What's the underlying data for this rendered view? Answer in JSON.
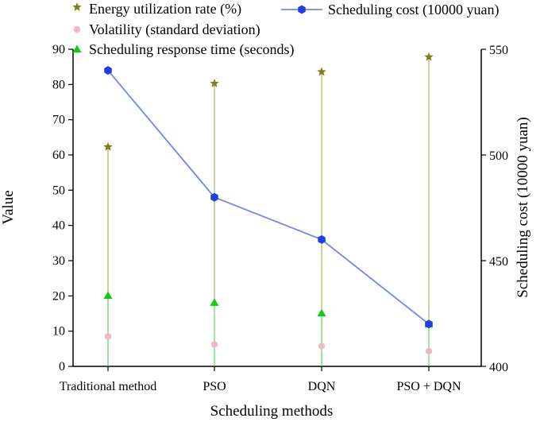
{
  "chart_data": {
    "type": "line",
    "title": "",
    "xlabel": "Scheduling methods",
    "ylabel": "Value",
    "y2label": "Scheduling cost (10000 yuan)",
    "categories": [
      "Traditional method",
      "PSO",
      "DQN",
      "PSO + DQN"
    ],
    "ylim": [
      0,
      90
    ],
    "y2lim": [
      400,
      550
    ],
    "yticks": [
      0,
      10,
      20,
      30,
      40,
      50,
      60,
      70,
      80,
      90
    ],
    "y2ticks": [
      400,
      450,
      500,
      550
    ],
    "series": [
      {
        "name": "Energy utilization rate (%)",
        "axis": "left",
        "marker": "star",
        "color": "#7f7f1a",
        "stem_color": "#a0a03c",
        "values": [
          62.3,
          80.3,
          83.6,
          87.8
        ]
      },
      {
        "name": "Volatility (standard deviation)",
        "axis": "left",
        "marker": "circle",
        "color": "#f0b6c8",
        "values": [
          8.5,
          6.2,
          5.8,
          4.3
        ]
      },
      {
        "name": "Scheduling response time (seconds)",
        "axis": "left",
        "marker": "triangle",
        "color": "#11cc11",
        "stem_color": "#33cc33",
        "values": [
          20.1,
          18.1,
          15.1,
          12.0
        ]
      },
      {
        "name": "Scheduling cost (10000 yuan)",
        "axis": "right",
        "marker": "hexagon",
        "line_color": "#6f86ec",
        "color": "#1f3fe0",
        "values": [
          540,
          480,
          460,
          420
        ]
      }
    ],
    "legend": "top"
  }
}
